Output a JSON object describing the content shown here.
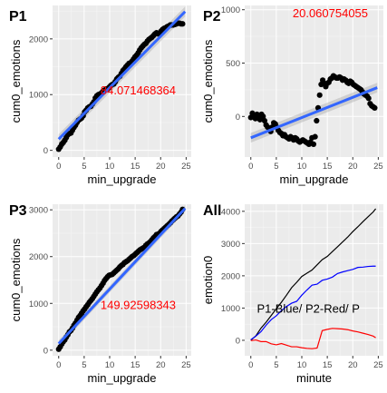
{
  "chart_data": [
    {
      "tag": "P1",
      "type": "scatter",
      "xlabel": "min_upgrade",
      "ylabel": "cum0_emotions",
      "xlim": [
        -1.2,
        26
      ],
      "ylim": [
        -120,
        2600
      ],
      "xticks": [
        0,
        5,
        10,
        15,
        20,
        25
      ],
      "yticks": [
        0,
        1000,
        2000
      ],
      "annotation": "84.071468364",
      "annotation_pos": {
        "x": 8.2,
        "y": 1000
      },
      "trend": {
        "x": [
          0,
          24.8
        ],
        "y": [
          200,
          2490
        ],
        "color": "#3366ff",
        "band": 90
      },
      "points": {
        "x": [
          0.0,
          0.3,
          0.6,
          0.9,
          1.2,
          1.5,
          1.8,
          2.1,
          2.4,
          2.7,
          3.0,
          3.3,
          3.6,
          3.9,
          4.2,
          4.5,
          4.8,
          5.1,
          5.4,
          5.7,
          6.0,
          6.3,
          6.6,
          6.9,
          7.2,
          7.5,
          7.8,
          8.1,
          8.4,
          8.7,
          9.0,
          9.3,
          9.6,
          9.9,
          10.2,
          10.5,
          10.8,
          11.1,
          11.4,
          11.7,
          12.0,
          12.3,
          12.6,
          12.9,
          13.2,
          13.5,
          13.8,
          14.1,
          14.4,
          14.7,
          15.0,
          15.3,
          15.6,
          15.9,
          16.2,
          16.5,
          16.8,
          17.1,
          17.4,
          17.7,
          18.0,
          18.3,
          18.6,
          18.9,
          19.2,
          19.5,
          19.8,
          20.1,
          20.4,
          20.7,
          21.0,
          21.3,
          21.6,
          21.9,
          22.2,
          22.5,
          22.8,
          23.1,
          23.4,
          23.7,
          24.0,
          24.3
        ],
        "y": [
          20,
          60,
          110,
          140,
          180,
          230,
          280,
          300,
          310,
          360,
          410,
          450,
          500,
          540,
          560,
          580,
          620,
          690,
          720,
          760,
          780,
          790,
          830,
          870,
          940,
          980,
          1000,
          1010,
          1030,
          1060,
          1080,
          1100,
          1100,
          1130,
          1160,
          1180,
          1190,
          1230,
          1280,
          1310,
          1330,
          1380,
          1430,
          1460,
          1500,
          1530,
          1560,
          1570,
          1600,
          1640,
          1680,
          1710,
          1750,
          1800,
          1840,
          1870,
          1900,
          1920,
          1960,
          1990,
          2010,
          2030,
          2060,
          2090,
          2110,
          2090,
          2100,
          2140,
          2170,
          2190,
          2200,
          2220,
          2230,
          2250,
          2250,
          2250,
          2260,
          2270,
          2280,
          2280,
          2270,
          2270
        ]
      }
    },
    {
      "tag": "P2",
      "type": "scatter",
      "xlabel": "min_upgrade",
      "ylabel": "cum0_emotions",
      "xlim": [
        -1.2,
        26
      ],
      "ylim": [
        -380,
        1040
      ],
      "xticks": [
        0,
        5,
        10,
        15,
        20,
        25
      ],
      "yticks": [
        0,
        500,
        1000
      ],
      "annotation": "20.060754055",
      "annotation_pos": {
        "x": 8.2,
        "y": 930
      },
      "trend": {
        "x": [
          0,
          24.8
        ],
        "y": [
          -200,
          270
        ],
        "color": "#3366ff",
        "band": 45
      },
      "points": {
        "x": [
          0.0,
          0.3,
          0.6,
          0.9,
          1.2,
          1.5,
          1.8,
          2.1,
          2.4,
          2.7,
          3.0,
          3.3,
          3.6,
          3.9,
          4.2,
          4.5,
          4.8,
          5.1,
          5.4,
          5.7,
          6.0,
          6.3,
          6.6,
          6.9,
          7.2,
          7.5,
          7.8,
          8.1,
          8.4,
          8.7,
          9.0,
          9.3,
          9.6,
          9.9,
          10.2,
          10.5,
          10.8,
          11.1,
          11.4,
          11.7,
          12.0,
          12.3,
          12.6,
          12.9,
          13.2,
          13.5,
          13.8,
          14.1,
          14.4,
          14.7,
          15.0,
          15.3,
          15.6,
          15.9,
          16.2,
          16.5,
          16.8,
          17.1,
          17.4,
          17.7,
          18.0,
          18.3,
          18.6,
          18.9,
          19.2,
          19.5,
          19.8,
          20.1,
          20.4,
          20.7,
          21.0,
          21.3,
          21.6,
          21.9,
          22.2,
          22.5,
          22.8,
          23.1,
          23.4,
          23.7,
          24.0,
          24.3
        ],
        "y": [
          -10,
          30,
          0,
          -20,
          20,
          10,
          -30,
          20,
          0,
          -40,
          -80,
          -100,
          -110,
          -140,
          -100,
          -60,
          -70,
          -100,
          -130,
          -150,
          -160,
          -180,
          -170,
          -190,
          -200,
          -210,
          -190,
          -200,
          -220,
          -200,
          -210,
          -230,
          -240,
          -230,
          -220,
          -230,
          -240,
          -250,
          -260,
          -240,
          -200,
          -260,
          -190,
          -40,
          80,
          200,
          300,
          340,
          310,
          280,
          310,
          320,
          350,
          360,
          380,
          370,
          360,
          360,
          370,
          360,
          340,
          350,
          340,
          320,
          310,
          330,
          320,
          300,
          290,
          280,
          270,
          260,
          250,
          230,
          210,
          200,
          190,
          170,
          120,
          100,
          90,
          80
        ]
      }
    },
    {
      "tag": "P3",
      "type": "scatter",
      "xlabel": "min_upgrade",
      "ylabel": "cum0_emotions",
      "xlim": [
        -1.2,
        26
      ],
      "ylim": [
        -120,
        3120
      ],
      "xticks": [
        0,
        5,
        10,
        15,
        20,
        25
      ],
      "yticks": [
        0,
        1000,
        2000,
        3000
      ],
      "annotation": "149.92598343",
      "annotation_pos": {
        "x": 8.2,
        "y": 880
      },
      "trend": {
        "x": [
          0,
          24.8
        ],
        "y": [
          140,
          3030
        ],
        "color": "#3366ff",
        "band": 70
      },
      "points": {
        "x": [
          0.0,
          0.3,
          0.6,
          0.9,
          1.2,
          1.5,
          1.8,
          2.1,
          2.4,
          2.7,
          3.0,
          3.3,
          3.6,
          3.9,
          4.2,
          4.5,
          4.8,
          5.1,
          5.4,
          5.7,
          6.0,
          6.3,
          6.6,
          6.9,
          7.2,
          7.5,
          7.8,
          8.1,
          8.4,
          8.7,
          9.0,
          9.3,
          9.6,
          9.9,
          10.2,
          10.5,
          10.8,
          11.1,
          11.4,
          11.7,
          12.0,
          12.3,
          12.6,
          12.9,
          13.2,
          13.5,
          13.8,
          14.1,
          14.4,
          14.7,
          15.0,
          15.3,
          15.6,
          15.9,
          16.2,
          16.5,
          16.8,
          17.1,
          17.4,
          17.7,
          18.0,
          18.3,
          18.6,
          18.9,
          19.2,
          19.5,
          19.8,
          20.1,
          20.4,
          20.7,
          21.0,
          21.3,
          21.6,
          21.9,
          22.2,
          22.5,
          22.8,
          23.1,
          23.4,
          23.7,
          24.0,
          24.3
        ],
        "y": [
          20,
          70,
          130,
          180,
          220,
          280,
          330,
          390,
          420,
          470,
          530,
          580,
          640,
          700,
          740,
          790,
          840,
          880,
          930,
          970,
          1020,
          1060,
          1100,
          1150,
          1200,
          1250,
          1290,
          1330,
          1380,
          1430,
          1490,
          1530,
          1570,
          1600,
          1610,
          1620,
          1650,
          1680,
          1710,
          1740,
          1780,
          1810,
          1830,
          1870,
          1890,
          1910,
          1940,
          1970,
          2000,
          2020,
          2050,
          2080,
          2110,
          2140,
          2160,
          2180,
          2200,
          2240,
          2270,
          2290,
          2320,
          2360,
          2400,
          2430,
          2470,
          2480,
          2500,
          2540,
          2570,
          2600,
          2630,
          2660,
          2690,
          2720,
          2760,
          2790,
          2820,
          2850,
          2870,
          2910,
          2950,
          3010
        ]
      }
    },
    {
      "tag": "All",
      "type": "line",
      "xlabel": "minute",
      "ylabel": "emotion0",
      "xlim": [
        -1.2,
        26
      ],
      "ylim": [
        -480,
        4220
      ],
      "xticks": [
        0,
        5,
        10,
        15,
        20,
        25
      ],
      "yticks": [
        0,
        1000,
        2000,
        3000,
        4000
      ],
      "annotation": "P1-Blue/ P2-Red/ P",
      "annotation_pos": {
        "x": 1.2,
        "y": 850
      },
      "series": [
        {
          "color": "#000000",
          "x": [
            0,
            1,
            2,
            3,
            4,
            5,
            6,
            7,
            8,
            9,
            10,
            11,
            12,
            13,
            14,
            15,
            16,
            17,
            18,
            19,
            20,
            21,
            22,
            23,
            24,
            24.5
          ],
          "y": [
            0,
            140,
            380,
            560,
            770,
            980,
            1180,
            1400,
            1630,
            1800,
            1980,
            2080,
            2180,
            2340,
            2500,
            2600,
            2750,
            2900,
            3050,
            3200,
            3370,
            3520,
            3680,
            3830,
            3980,
            4080
          ]
        },
        {
          "color": "#0000ff",
          "x": [
            0,
            1,
            2,
            3,
            4,
            5,
            6,
            7,
            8,
            9,
            10,
            11,
            12,
            13,
            14,
            15,
            16,
            17,
            18,
            19,
            20,
            21,
            22,
            23,
            24,
            24.5
          ],
          "y": [
            20,
            130,
            270,
            470,
            640,
            760,
            920,
            1050,
            1150,
            1210,
            1400,
            1560,
            1710,
            1740,
            1860,
            1900,
            1960,
            2070,
            2120,
            2160,
            2200,
            2260,
            2270,
            2290,
            2300,
            2300
          ]
        },
        {
          "color": "#ff0000",
          "x": [
            0,
            1,
            2,
            3,
            4,
            5,
            6,
            7,
            8,
            9,
            10,
            11,
            12,
            13,
            14,
            15,
            16,
            17,
            18,
            19,
            20,
            21,
            22,
            23,
            24,
            24.5
          ],
          "y": [
            -10,
            10,
            -40,
            -40,
            -110,
            -140,
            -100,
            -150,
            -200,
            -200,
            -230,
            -250,
            -260,
            -240,
            300,
            340,
            370,
            360,
            350,
            330,
            290,
            260,
            220,
            180,
            130,
            80
          ]
        }
      ]
    }
  ]
}
